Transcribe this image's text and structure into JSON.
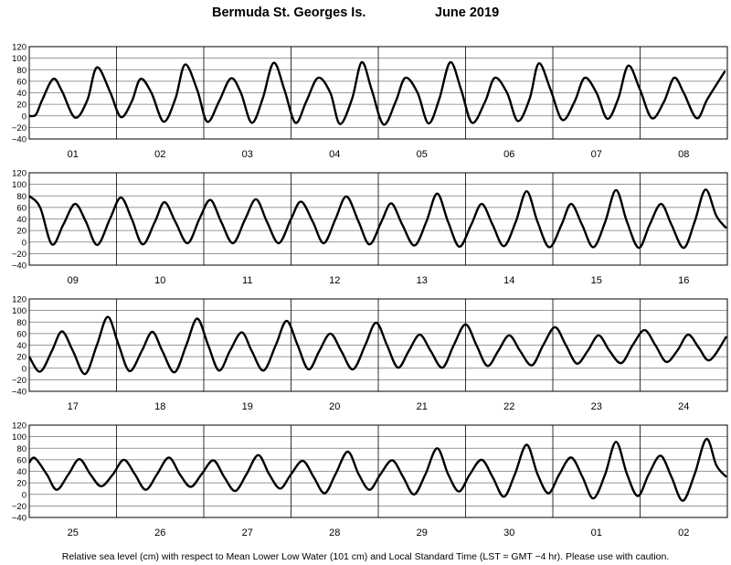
{
  "title": {
    "location": "Bermuda St. Georges Is.",
    "month_year": "June   2019"
  },
  "footer": "Relative sea level (cm) with respect to Mean Lower Low Water (101 cm) and Local Standard Time (LST = GMT −4 hr). Please use with caution.",
  "chart_data": [
    {
      "type": "line",
      "days": [
        "01",
        "02",
        "03",
        "04",
        "05",
        "06",
        "07",
        "08"
      ],
      "ylim": [
        -40,
        120
      ],
      "y_ticks": [
        120,
        100,
        80,
        60,
        40,
        20,
        0,
        -20,
        -40
      ],
      "y_tick_labels": [
        "120",
        "100",
        "80",
        "60",
        "40",
        "20",
        "0",
        "−20",
        "−40"
      ],
      "grid": true,
      "series": [
        {
          "points": [
            [
              0,
              0
            ],
            [
              0.15,
              2
            ],
            [
              0.3,
              28
            ],
            [
              0.55,
              64
            ],
            [
              0.75,
              43
            ],
            [
              1.05,
              -3
            ],
            [
              1.33,
              27
            ],
            [
              1.55,
              84
            ],
            [
              1.85,
              42
            ],
            [
              2.1,
              -2
            ],
            [
              2.35,
              25
            ],
            [
              2.55,
              64
            ],
            [
              2.8,
              40
            ],
            [
              3.08,
              -10
            ],
            [
              3.35,
              30
            ],
            [
              3.57,
              89
            ],
            [
              3.85,
              45
            ],
            [
              4.08,
              -10
            ],
            [
              4.35,
              25
            ],
            [
              4.62,
              65
            ],
            [
              4.85,
              40
            ],
            [
              5.1,
              -12
            ],
            [
              5.35,
              30
            ],
            [
              5.6,
              92
            ],
            [
              5.85,
              45
            ],
            [
              6.1,
              -12
            ],
            [
              6.35,
              25
            ],
            [
              6.62,
              66
            ],
            [
              6.9,
              40
            ],
            [
              7.12,
              -14
            ],
            [
              7.4,
              30
            ],
            [
              7.62,
              93
            ],
            [
              7.85,
              45
            ],
            [
              8.12,
              -15
            ],
            [
              8.4,
              25
            ],
            [
              8.62,
              66
            ],
            [
              8.9,
              40
            ],
            [
              9.15,
              -13
            ],
            [
              9.4,
              30
            ],
            [
              9.65,
              93
            ],
            [
              9.9,
              45
            ],
            [
              10.15,
              -12
            ],
            [
              10.45,
              25
            ],
            [
              10.67,
              66
            ],
            [
              10.95,
              40
            ],
            [
              11.2,
              -9
            ],
            [
              11.47,
              30
            ],
            [
              11.68,
              91
            ],
            [
              11.95,
              45
            ],
            [
              12.22,
              -7
            ],
            [
              12.5,
              25
            ],
            [
              12.73,
              66
            ],
            [
              13,
              40
            ],
            [
              13.25,
              -5
            ],
            [
              13.5,
              30
            ],
            [
              13.73,
              87
            ],
            [
              14,
              45
            ],
            [
              14.27,
              -4
            ],
            [
              14.55,
              25
            ],
            [
              14.78,
              66
            ],
            [
              15,
              40
            ],
            [
              15.3,
              -4
            ],
            [
              15.55,
              30
            ],
            [
              15.95,
              78
            ]
          ]
        }
      ]
    },
    {
      "type": "line",
      "days": [
        "09",
        "10",
        "11",
        "12",
        "13",
        "14",
        "15",
        "16"
      ],
      "ylim": [
        -40,
        120
      ],
      "y_ticks": [
        120,
        100,
        80,
        60,
        40,
        20,
        0,
        -20,
        -40
      ],
      "y_tick_labels": [
        "120",
        "100",
        "80",
        "60",
        "40",
        "20",
        "0",
        "−20",
        "−40"
      ],
      "grid": true,
      "series": [
        {
          "points": [
            [
              0,
              80
            ],
            [
              0.25,
              60
            ],
            [
              0.52,
              -4
            ],
            [
              0.78,
              30
            ],
            [
              1.05,
              66
            ],
            [
              1.3,
              35
            ],
            [
              1.56,
              -5
            ],
            [
              1.85,
              40
            ],
            [
              2.1,
              77
            ],
            [
              2.35,
              40
            ],
            [
              2.6,
              -4
            ],
            [
              2.88,
              35
            ],
            [
              3.1,
              69
            ],
            [
              3.35,
              35
            ],
            [
              3.63,
              -2
            ],
            [
              3.9,
              40
            ],
            [
              4.15,
              73
            ],
            [
              4.4,
              35
            ],
            [
              4.67,
              -2
            ],
            [
              4.95,
              40
            ],
            [
              5.2,
              74
            ],
            [
              5.45,
              35
            ],
            [
              5.72,
              -2
            ],
            [
              6,
              40
            ],
            [
              6.23,
              70
            ],
            [
              6.5,
              35
            ],
            [
              6.75,
              -2
            ],
            [
              7.02,
              40
            ],
            [
              7.27,
              79
            ],
            [
              7.55,
              35
            ],
            [
              7.8,
              -4
            ],
            [
              8.07,
              35
            ],
            [
              8.3,
              67
            ],
            [
              8.55,
              30
            ],
            [
              8.83,
              -6
            ],
            [
              9.1,
              35
            ],
            [
              9.35,
              84
            ],
            [
              9.6,
              35
            ],
            [
              9.86,
              -8
            ],
            [
              10.13,
              30
            ],
            [
              10.37,
              66
            ],
            [
              10.62,
              30
            ],
            [
              10.88,
              -7
            ],
            [
              11.15,
              35
            ],
            [
              11.4,
              88
            ],
            [
              11.65,
              35
            ],
            [
              11.92,
              -9
            ],
            [
              12.2,
              30
            ],
            [
              12.42,
              66
            ],
            [
              12.67,
              30
            ],
            [
              12.93,
              -9
            ],
            [
              13.2,
              35
            ],
            [
              13.45,
              90
            ],
            [
              13.7,
              35
            ],
            [
              13.97,
              -10
            ],
            [
              14.22,
              30
            ],
            [
              14.48,
              66
            ],
            [
              14.72,
              30
            ],
            [
              15,
              -10
            ],
            [
              15.25,
              35
            ],
            [
              15.5,
              91
            ],
            [
              15.75,
              45
            ],
            [
              15.98,
              24
            ]
          ]
        }
      ]
    },
    {
      "type": "line",
      "days": [
        "17",
        "18",
        "19",
        "20",
        "21",
        "22",
        "23",
        "24"
      ],
      "ylim": [
        -40,
        120
      ],
      "y_ticks": [
        120,
        100,
        80,
        60,
        40,
        20,
        0,
        -20,
        -40
      ],
      "y_tick_labels": [
        "120",
        "100",
        "80",
        "60",
        "40",
        "20",
        "0",
        "−20",
        "−40"
      ],
      "grid": true,
      "series": [
        {
          "points": [
            [
              0,
              20
            ],
            [
              0.25,
              -6
            ],
            [
              0.52,
              30
            ],
            [
              0.75,
              64
            ],
            [
              1,
              30
            ],
            [
              1.28,
              -10
            ],
            [
              1.55,
              40
            ],
            [
              1.8,
              89
            ],
            [
              2.05,
              40
            ],
            [
              2.3,
              -5
            ],
            [
              2.58,
              30
            ],
            [
              2.82,
              63
            ],
            [
              3.05,
              30
            ],
            [
              3.33,
              -7
            ],
            [
              3.6,
              40
            ],
            [
              3.85,
              86
            ],
            [
              4.1,
              40
            ],
            [
              4.35,
              -4
            ],
            [
              4.6,
              30
            ],
            [
              4.87,
              62
            ],
            [
              5.1,
              30
            ],
            [
              5.37,
              -4
            ],
            [
              5.65,
              40
            ],
            [
              5.9,
              82
            ],
            [
              6.15,
              40
            ],
            [
              6.4,
              -2
            ],
            [
              6.65,
              30
            ],
            [
              6.9,
              60
            ],
            [
              7.15,
              30
            ],
            [
              7.42,
              -2
            ],
            [
              7.7,
              40
            ],
            [
              7.95,
              79
            ],
            [
              8.2,
              40
            ],
            [
              8.45,
              1
            ],
            [
              8.7,
              30
            ],
            [
              8.95,
              58
            ],
            [
              9.2,
              30
            ],
            [
              9.47,
              1
            ],
            [
              9.73,
              40
            ],
            [
              10,
              76
            ],
            [
              10.25,
              40
            ],
            [
              10.5,
              4
            ],
            [
              10.75,
              30
            ],
            [
              11,
              57
            ],
            [
              11.25,
              30
            ],
            [
              11.52,
              5
            ],
            [
              11.78,
              40
            ],
            [
              12.05,
              71
            ],
            [
              12.3,
              40
            ],
            [
              12.55,
              8
            ],
            [
              12.8,
              30
            ],
            [
              13.05,
              57
            ],
            [
              13.3,
              30
            ],
            [
              13.57,
              9
            ],
            [
              13.83,
              40
            ],
            [
              14.1,
              66
            ],
            [
              14.35,
              40
            ],
            [
              14.6,
              11
            ],
            [
              14.85,
              30
            ],
            [
              15.1,
              58
            ],
            [
              15.35,
              35
            ],
            [
              15.6,
              14
            ],
            [
              15.98,
              55
            ]
          ]
        }
      ]
    },
    {
      "type": "line",
      "days": [
        "25",
        "26",
        "27",
        "28",
        "29",
        "30",
        "01",
        "02"
      ],
      "ylim": [
        -40,
        120
      ],
      "y_ticks": [
        120,
        100,
        80,
        60,
        40,
        20,
        0,
        -20,
        -40
      ],
      "y_tick_labels": [
        "120",
        "100",
        "80",
        "60",
        "40",
        "20",
        "0",
        "−20",
        "−40"
      ],
      "grid": true,
      "series": [
        {
          "points": [
            [
              0,
              55
            ],
            [
              0.13,
              63
            ],
            [
              0.4,
              35
            ],
            [
              0.63,
              8
            ],
            [
              0.9,
              35
            ],
            [
              1.15,
              61
            ],
            [
              1.4,
              35
            ],
            [
              1.65,
              14
            ],
            [
              1.92,
              35
            ],
            [
              2.17,
              60
            ],
            [
              2.42,
              35
            ],
            [
              2.67,
              8
            ],
            [
              2.93,
              35
            ],
            [
              3.2,
              64
            ],
            [
              3.45,
              35
            ],
            [
              3.7,
              13
            ],
            [
              3.95,
              35
            ],
            [
              4.22,
              59
            ],
            [
              4.47,
              30
            ],
            [
              4.72,
              6
            ],
            [
              4.98,
              35
            ],
            [
              5.25,
              68
            ],
            [
              5.5,
              35
            ],
            [
              5.75,
              10
            ],
            [
              6,
              35
            ],
            [
              6.27,
              58
            ],
            [
              6.52,
              30
            ],
            [
              6.77,
              2
            ],
            [
              7.02,
              35
            ],
            [
              7.3,
              74
            ],
            [
              7.55,
              35
            ],
            [
              7.8,
              8
            ],
            [
              8.05,
              35
            ],
            [
              8.32,
              59
            ],
            [
              8.57,
              30
            ],
            [
              8.82,
              0
            ],
            [
              9.08,
              35
            ],
            [
              9.35,
              80
            ],
            [
              9.6,
              35
            ],
            [
              9.85,
              5
            ],
            [
              10.1,
              35
            ],
            [
              10.37,
              60
            ],
            [
              10.62,
              30
            ],
            [
              10.88,
              -4
            ],
            [
              11.13,
              35
            ],
            [
              11.4,
              86
            ],
            [
              11.65,
              35
            ],
            [
              11.9,
              2
            ],
            [
              12.15,
              35
            ],
            [
              12.42,
              64
            ],
            [
              12.68,
              30
            ],
            [
              12.93,
              -7
            ],
            [
              13.2,
              35
            ],
            [
              13.45,
              91
            ],
            [
              13.7,
              35
            ],
            [
              13.95,
              -3
            ],
            [
              14.2,
              35
            ],
            [
              14.47,
              67
            ],
            [
              14.72,
              30
            ],
            [
              14.98,
              -11
            ],
            [
              15.25,
              35
            ],
            [
              15.52,
              96
            ],
            [
              15.75,
              50
            ],
            [
              15.98,
              30
            ]
          ]
        }
      ]
    }
  ]
}
